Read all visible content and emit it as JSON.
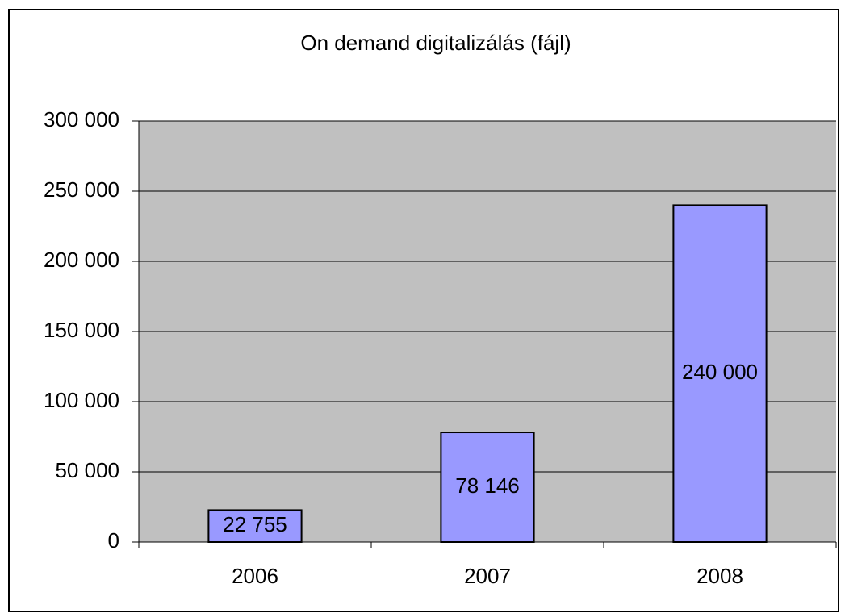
{
  "chart_data": {
    "type": "bar",
    "title": "On demand digitalizálás (fájl)",
    "categories": [
      "2006",
      "2007",
      "2008"
    ],
    "values": [
      22755,
      78146,
      240000
    ],
    "value_labels": [
      "22 755",
      "78 146",
      "240 000"
    ],
    "color": "#9999ff",
    "ylim": [
      0,
      300000
    ],
    "yticks": [
      0,
      {
        "value": 50000,
        "label": "50 000"
      },
      {
        "value": 100000,
        "label": "100 000"
      },
      {
        "value": 150000,
        "label": "150 000"
      },
      {
        "value": 200000,
        "label": "200 000"
      },
      {
        "value": 250000,
        "label": "250 000"
      },
      {
        "value": 300000,
        "label": "300 000"
      }
    ],
    "grid": true
  }
}
